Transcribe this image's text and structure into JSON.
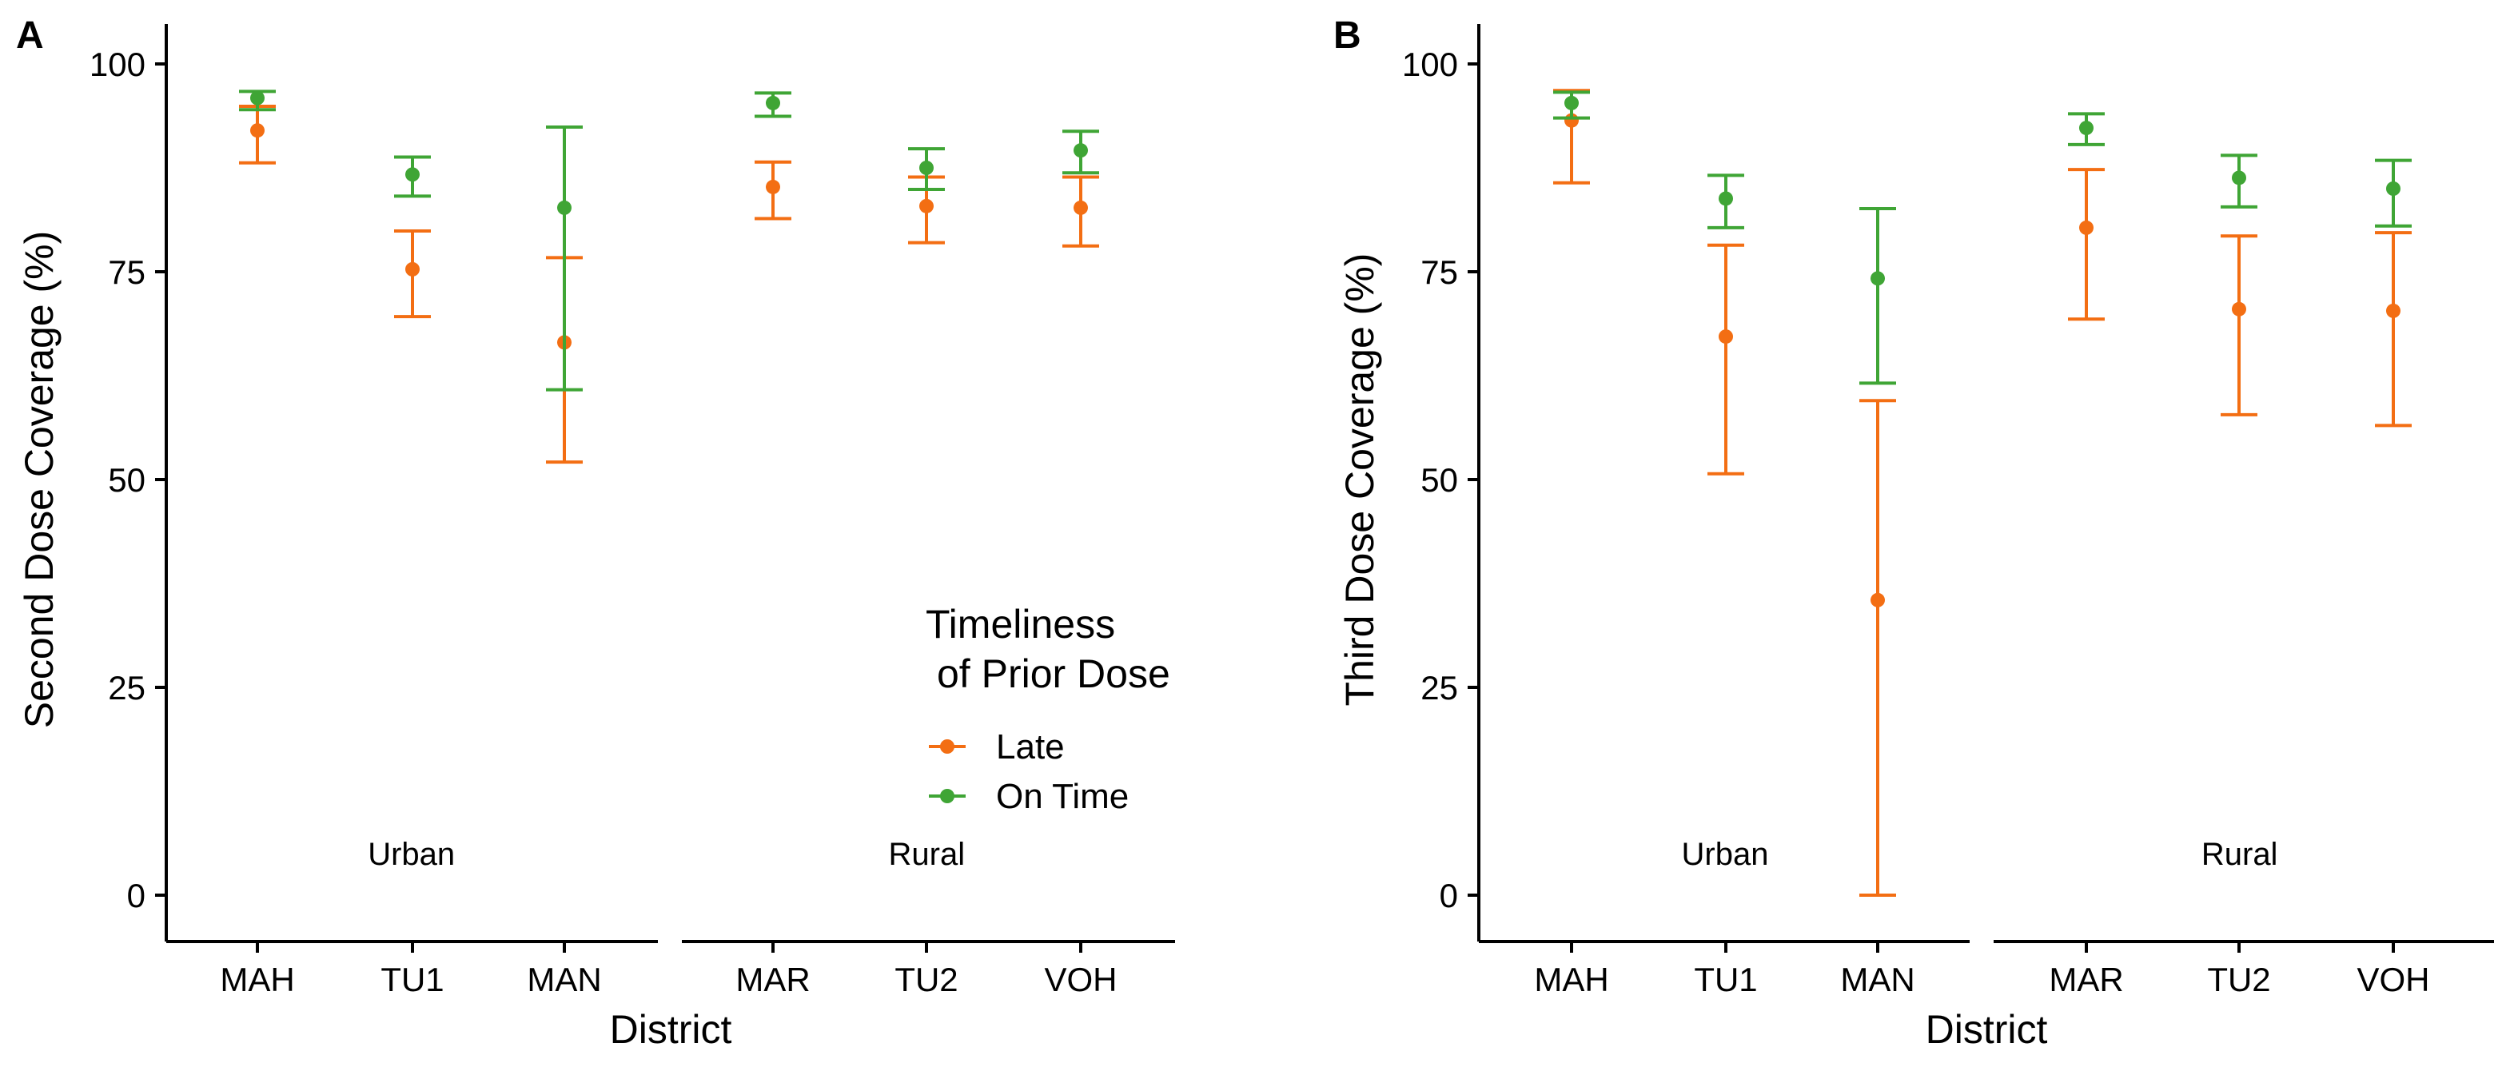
{
  "colors": {
    "late": "#F36E13",
    "on_time": "#3FA535"
  },
  "legend": {
    "title_line1": "Timeliness",
    "title_line2": "of Prior Dose",
    "items": [
      {
        "label": "Late",
        "color": "#F36E13"
      },
      {
        "label": "On Time",
        "color": "#3FA535"
      }
    ]
  },
  "chart_data": [
    {
      "panel": "A",
      "type": "scatter",
      "subtype": "point estimates with error bars",
      "xlabel": "District",
      "ylabel": "Second Dose Coverage (%)",
      "ylim": [
        0,
        100
      ],
      "yticks": [
        0,
        25,
        50,
        75,
        100
      ],
      "categories": [
        "MAH",
        "TU1",
        "MAN",
        "MAR",
        "TU2",
        "VOH"
      ],
      "groups": [
        {
          "label": "Urban",
          "categories": [
            "MAH",
            "TU1",
            "MAN"
          ]
        },
        {
          "label": "Rural",
          "categories": [
            "MAR",
            "TU2",
            "VOH"
          ]
        }
      ],
      "series": [
        {
          "name": "Late",
          "values": [
            92.0,
            75.3,
            66.5,
            85.2,
            82.9,
            82.7
          ],
          "lower": [
            88.1,
            69.6,
            52.1,
            81.4,
            78.5,
            78.1
          ],
          "upper": [
            94.9,
            79.9,
            76.7,
            88.2,
            86.4,
            86.4
          ]
        },
        {
          "name": "On Time",
          "values": [
            95.9,
            86.7,
            82.7,
            95.3,
            87.5,
            89.6
          ],
          "lower": [
            94.5,
            84.1,
            60.8,
            93.7,
            84.9,
            86.9
          ],
          "upper": [
            96.7,
            88.8,
            92.4,
            96.5,
            89.8,
            91.9
          ]
        }
      ]
    },
    {
      "panel": "B",
      "type": "scatter",
      "subtype": "point estimates with error bars",
      "xlabel": "District",
      "ylabel": "Third Dose Coverage (%)",
      "ylim": [
        0,
        100
      ],
      "yticks": [
        0,
        25,
        50,
        75,
        100
      ],
      "categories": [
        "MAH",
        "TU1",
        "MAN",
        "MAR",
        "TU2",
        "VOH"
      ],
      "groups": [
        {
          "label": "Urban",
          "categories": [
            "MAH",
            "TU1",
            "MAN"
          ]
        },
        {
          "label": "Rural",
          "categories": [
            "MAR",
            "TU2",
            "VOH"
          ]
        }
      ],
      "series": [
        {
          "name": "Late",
          "values": [
            93.2,
            67.2,
            35.5,
            80.3,
            70.5,
            70.3
          ],
          "lower": [
            85.7,
            50.7,
            0.0,
            69.3,
            57.8,
            56.5
          ],
          "upper": [
            96.8,
            78.2,
            59.5,
            87.3,
            79.3,
            79.7
          ]
        },
        {
          "name": "On Time",
          "values": [
            95.3,
            83.8,
            74.2,
            92.3,
            86.3,
            85.0
          ],
          "lower": [
            93.5,
            80.3,
            61.6,
            90.3,
            82.8,
            80.5
          ],
          "upper": [
            96.6,
            86.6,
            82.6,
            94.0,
            89.0,
            88.4
          ]
        }
      ]
    }
  ]
}
